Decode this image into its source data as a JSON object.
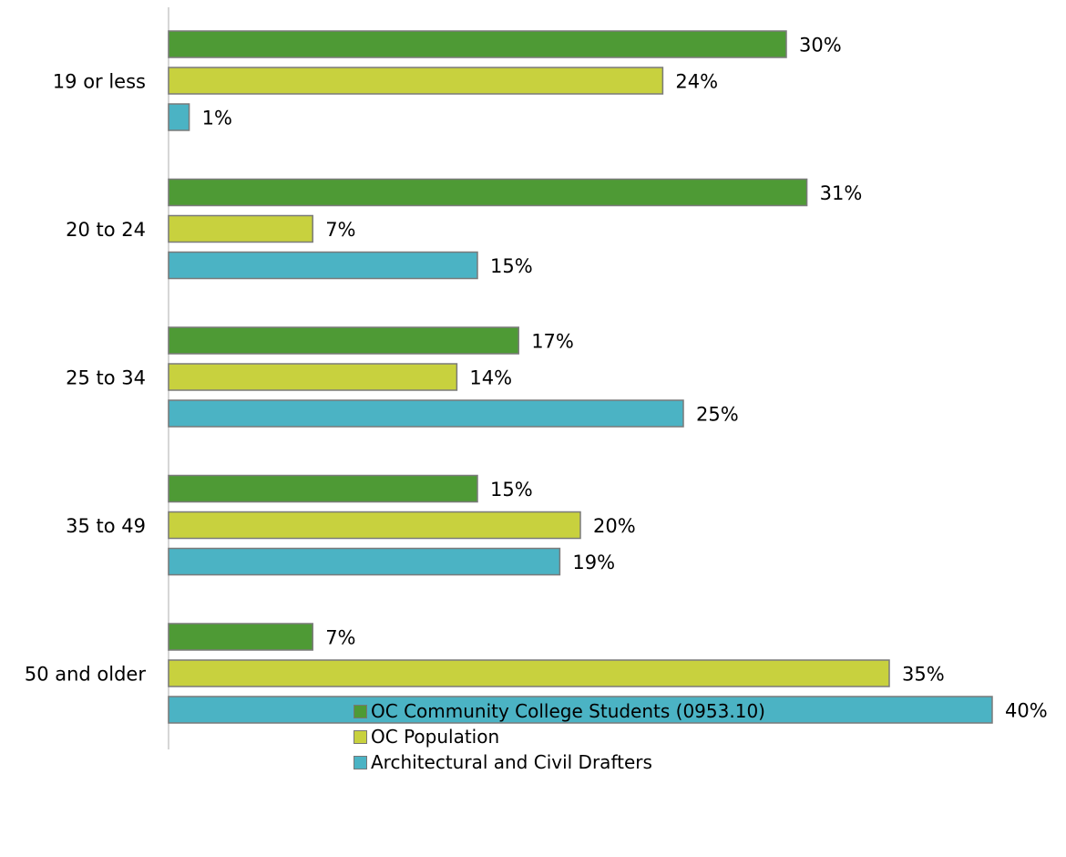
{
  "chart_data": {
    "type": "bar",
    "orientation": "horizontal",
    "categories": [
      "19 or less",
      "20 to 24",
      "25 to 34",
      "35 to 49",
      "50 and older"
    ],
    "series": [
      {
        "name": "OC Community College Students (0953.10)",
        "color": "#4E9A35",
        "values": [
          30,
          31,
          17,
          15,
          7
        ]
      },
      {
        "name": "OC Population",
        "color": "#C8D13E",
        "values": [
          24,
          7,
          14,
          20,
          35
        ]
      },
      {
        "name": "Architectural and Civil Drafters",
        "color": "#4BB3C4",
        "values": [
          1,
          15,
          25,
          19,
          40
        ]
      }
    ],
    "value_suffix": "%",
    "xlim": [
      0,
      40
    ],
    "grid": false,
    "legend_position": "bottom"
  }
}
